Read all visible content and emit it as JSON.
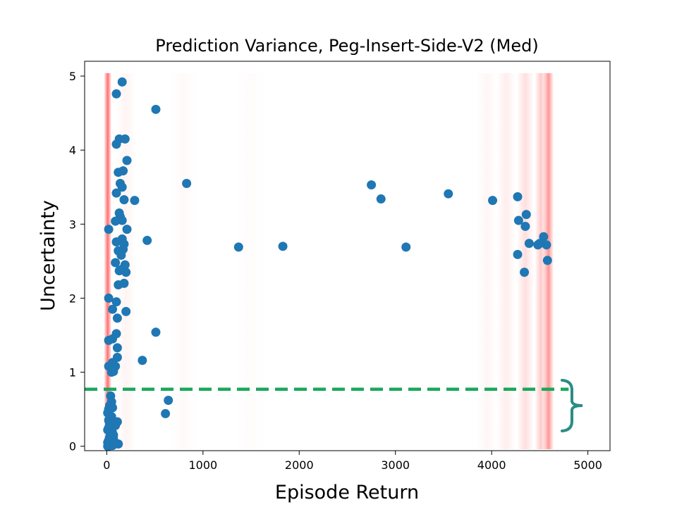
{
  "chart_data": {
    "type": "scatter",
    "title": "Prediction Variance, Peg-Insert-Side-V2 (Med)",
    "xlabel": "Episode Return",
    "ylabel": "Uncertainty",
    "xlim": [
      -230,
      5230
    ],
    "ylim": [
      -0.06,
      5.2
    ],
    "xticks": [
      0,
      1000,
      2000,
      3000,
      4000,
      5000
    ],
    "yticks": [
      0,
      1,
      2,
      3,
      4,
      5
    ],
    "grid": false,
    "colors": {
      "points": "#1f77b4",
      "density_band": "#ff4d4d",
      "threshold_line": "#1aa85a",
      "brace": "#2a8c84"
    },
    "threshold": {
      "y": 0.77,
      "x_range": [
        -230,
        4800
      ]
    },
    "density_bands": [
      {
        "x": 10,
        "strength": 0.8,
        "width": 80
      },
      {
        "x": 4590,
        "strength": 0.6,
        "width": 110
      },
      {
        "x": 4510,
        "strength": 0.3,
        "width": 120
      },
      {
        "x": 4350,
        "strength": 0.18,
        "width": 180
      },
      {
        "x": 4150,
        "strength": 0.1,
        "width": 200
      },
      {
        "x": 3950,
        "strength": 0.05,
        "width": 220
      },
      {
        "x": 800,
        "strength": 0.03,
        "width": 300
      },
      {
        "x": 200,
        "strength": 0.06,
        "width": 200
      },
      {
        "x": 1500,
        "strength": 0.02,
        "width": 300
      }
    ],
    "x": [
      160,
      100,
      510,
      130,
      190,
      100,
      210,
      170,
      120,
      140,
      160,
      100,
      180,
      290,
      830,
      130,
      140,
      160,
      90,
      20,
      210,
      160,
      100,
      180,
      420,
      170,
      120,
      150,
      90,
      190,
      170,
      130,
      140,
      200,
      180,
      120,
      20,
      100,
      60,
      200,
      110,
      100,
      60,
      510,
      110,
      20,
      110,
      60,
      70,
      370,
      90,
      20,
      50,
      640,
      610,
      40,
      50,
      30,
      20,
      60,
      10,
      50,
      40,
      20,
      70,
      30,
      90,
      20,
      10,
      50,
      60,
      40,
      110,
      30,
      70,
      20,
      10,
      50,
      90,
      120,
      20,
      40,
      60,
      20,
      10,
      40,
      80,
      30,
      20,
      70,
      2750,
      2850,
      3550,
      4010,
      4270,
      4280,
      4360,
      4350,
      4390,
      4540,
      4500,
      4570,
      4480,
      4580,
      4270,
      4340,
      1370,
      1830,
      3110
    ],
    "y": [
      4.92,
      4.76,
      4.55,
      4.15,
      4.15,
      4.08,
      3.86,
      3.72,
      3.7,
      3.55,
      3.5,
      3.42,
      3.33,
      3.32,
      3.55,
      3.15,
      3.1,
      3.05,
      3.04,
      2.93,
      2.93,
      2.8,
      2.76,
      2.73,
      2.78,
      2.66,
      2.64,
      2.58,
      2.48,
      2.45,
      2.4,
      2.37,
      2.38,
      2.35,
      2.2,
      2.18,
      2.0,
      1.95,
      1.85,
      1.82,
      1.73,
      1.52,
      1.45,
      1.54,
      1.33,
      1.43,
      1.2,
      1.13,
      1.01,
      1.16,
      1.08,
      1.08,
      1.0,
      0.62,
      0.44,
      0.68,
      0.6,
      0.55,
      0.5,
      0.52,
      0.45,
      0.4,
      0.38,
      0.35,
      0.33,
      0.3,
      0.28,
      0.25,
      0.22,
      0.2,
      0.18,
      0.15,
      0.33,
      0.12,
      0.1,
      0.08,
      0.05,
      0.05,
      0.04,
      0.03,
      0.02,
      0.02,
      0.01,
      0.0,
      0.0,
      0.01,
      0.03,
      0.04,
      0.07,
      0.15,
      3.53,
      3.34,
      3.41,
      3.32,
      3.37,
      3.05,
      3.13,
      2.97,
      2.74,
      2.83,
      2.74,
      2.72,
      2.72,
      2.51,
      2.59,
      2.35,
      2.69,
      2.7,
      2.69
    ]
  }
}
